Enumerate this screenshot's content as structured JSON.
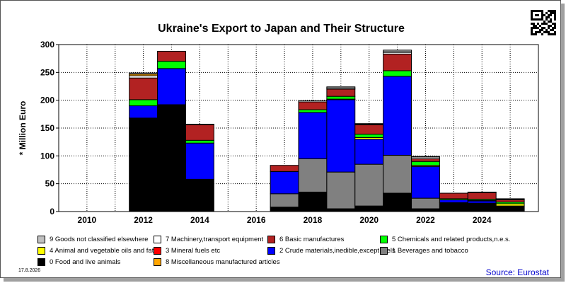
{
  "chart_data": {
    "type": "bar",
    "stacked": true,
    "title": "Ukraine's Export to Japan and Their Structure",
    "ylabel": "* Million Euro",
    "xlabel": "",
    "ylim": [
      0,
      300
    ],
    "yticks": [
      0,
      50,
      100,
      150,
      200,
      250,
      300
    ],
    "xlim": [
      2009,
      2026
    ],
    "xticks": [
      2010,
      2012,
      2014,
      2016,
      2018,
      2020,
      2022,
      2024
    ],
    "grid": true,
    "legend_position": "bottom",
    "categories": [
      2012,
      2013,
      2014,
      2017,
      2018,
      2019,
      2020,
      2021,
      2022,
      2023,
      2024,
      2025
    ],
    "series": [
      {
        "name": "0 Food and live animals",
        "color": "#000000",
        "values": [
          168,
          192,
          58,
          8,
          35,
          5,
          10,
          33,
          5,
          16,
          15,
          10
        ]
      },
      {
        "name": "1 Beverages and tobacco",
        "color": "#808080",
        "values": [
          0,
          0,
          0,
          24,
          60,
          66,
          75,
          68,
          19,
          0,
          0,
          0
        ]
      },
      {
        "name": "2 Crude materials,inedible,except fuels",
        "color": "#0000ff",
        "values": [
          22,
          65,
          65,
          40,
          83,
          130,
          45,
          142,
          57,
          5,
          4,
          0
        ]
      },
      {
        "name": "3 Mineral fuels etc",
        "color": "#ff0000",
        "values": [
          0,
          0,
          0,
          0,
          0,
          0,
          0,
          0,
          0,
          0,
          0,
          0
        ]
      },
      {
        "name": "4 Animal and vegetable oils and fats",
        "color": "#ffff00",
        "values": [
          0,
          0,
          0,
          0,
          0,
          1,
          3,
          0,
          2,
          0,
          1,
          4
        ]
      },
      {
        "name": "5 Chemicals and related products,n.e.s.",
        "color": "#00ff00",
        "values": [
          11,
          13,
          5,
          0,
          5,
          5,
          6,
          10,
          7,
          2,
          2,
          3
        ]
      },
      {
        "name": "6 Basic manufactures",
        "color": "#b22222",
        "values": [
          39,
          18,
          28,
          11,
          14,
          13,
          17,
          30,
          5,
          10,
          12,
          4
        ]
      },
      {
        "name": "7 Machinery,transport equipment",
        "color": "#ffffff",
        "values": [
          4,
          0,
          1,
          0,
          2,
          2,
          1,
          3,
          3,
          0,
          1,
          1
        ]
      },
      {
        "name": "8 Miscellaneous manufactured articles",
        "color": "#ffa500",
        "values": [
          3,
          0,
          0,
          0,
          0,
          0,
          0,
          1,
          0,
          0,
          0,
          0
        ]
      },
      {
        "name": "9 Goods not classified elsewhere",
        "color": "#c0c0c0",
        "values": [
          2,
          0,
          0,
          0,
          0,
          2,
          1,
          3,
          1,
          0,
          0,
          1
        ]
      }
    ]
  },
  "legend_order": [
    9,
    7,
    6,
    5,
    4,
    3,
    2,
    1,
    0,
    8
  ],
  "footer": {
    "date": "17.8.2026",
    "source": "Source: Eurostat"
  }
}
